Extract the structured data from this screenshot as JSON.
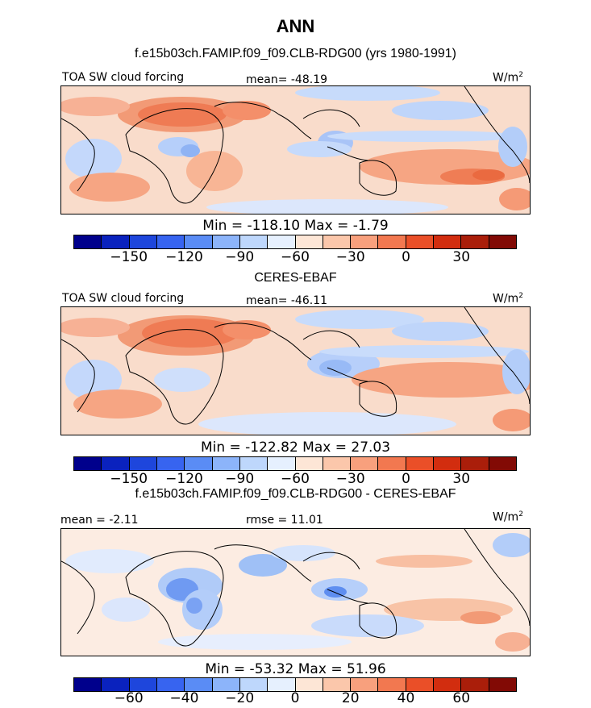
{
  "figure": {
    "season": "ANN",
    "subtitle_model": "f.e15b03ch.FAMIP.f09_f09.CLB-RDG00 (yrs 1980-1991)",
    "subtitle_obs": "CERES-EBAF",
    "subtitle_diff": "f.e15b03ch.FAMIP.f09_f09.CLB-RDG00 - CERES-EBAF"
  },
  "panels": [
    {
      "label": "TOA SW cloud forcing",
      "mean_text": "mean= -48.19",
      "units_text": "W/m",
      "units_sup": "2",
      "minmax_text": "Min = -118.10 Max =  -1.79"
    },
    {
      "label": "TOA SW cloud forcing",
      "mean_text": "mean= -46.11",
      "units_text": "W/m",
      "units_sup": "2",
      "minmax_text": "Min = -122.82 Max =  27.03"
    },
    {
      "label": "mean =  -2.11",
      "mean_text": "rmse =  11.01",
      "units_text": "W/m",
      "units_sup": "2",
      "minmax_text": "Min = -53.32 Max =  51.96"
    }
  ],
  "colorbars": {
    "colors": [
      "#00008c",
      "#0a22be",
      "#1e46dc",
      "#3764f0",
      "#5a8cf5",
      "#8cb4fa",
      "#bed7fc",
      "#e6f0fe",
      "#fde6d6",
      "#fbc7ab",
      "#f8a07d",
      "#f27850",
      "#ea4f28",
      "#d22d0f",
      "#aa1e0a",
      "#820a05"
    ],
    "abs_ticks": [
      "-150",
      "-120",
      "-90",
      "-60",
      "-30",
      "0",
      "30"
    ],
    "diff_ticks": [
      "-60",
      "-40",
      "-20",
      "0",
      "20",
      "40",
      "60"
    ]
  },
  "chart_data": [
    {
      "type": "heatmap",
      "title": "TOA SW cloud forcing",
      "subtitle": "f.e15b03ch.FAMIP.f09_f09.CLB-RDG00 (yrs 1980-1991)",
      "units": "W/m2",
      "mean": -48.19,
      "min": -118.1,
      "max": -1.79,
      "color_levels": [
        -165,
        -150,
        -135,
        -120,
        -105,
        -90,
        -75,
        -60,
        -45,
        -30,
        -15,
        0,
        15,
        30,
        45
      ]
    },
    {
      "type": "heatmap",
      "title": "TOA SW cloud forcing",
      "subtitle": "CERES-EBAF",
      "units": "W/m2",
      "mean": -46.11,
      "min": -122.82,
      "max": 27.03,
      "color_levels": [
        -165,
        -150,
        -135,
        -120,
        -105,
        -90,
        -75,
        -60,
        -45,
        -30,
        -15,
        0,
        15,
        30,
        45
      ]
    },
    {
      "type": "heatmap",
      "subtitle": "f.e15b03ch.FAMIP.f09_f09.CLB-RDG00 - CERES-EBAF",
      "units": "W/m2",
      "mean": -2.11,
      "rmse": 11.01,
      "min": -53.32,
      "max": 51.96,
      "color_levels": [
        -70,
        -60,
        -50,
        -40,
        -30,
        -20,
        -10,
        0,
        10,
        20,
        30,
        40,
        50,
        60,
        70
      ]
    }
  ]
}
